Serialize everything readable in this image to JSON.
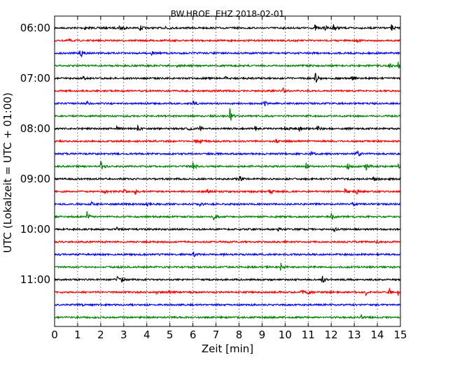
{
  "chart_data": {
    "type": "line",
    "title": "BW.HROE..EHZ 2018-02-01",
    "xlabel": "Zeit  [min]",
    "ylabel": "UTC (Lokalzeit = UTC + 01:00)",
    "xlim": [
      0,
      15
    ],
    "x_ticks": [
      "0",
      "1",
      "2",
      "3",
      "4",
      "5",
      "6",
      "7",
      "8",
      "9",
      "10",
      "11",
      "12",
      "13",
      "14",
      "15"
    ],
    "y_ticks": [
      "06:00",
      "07:00",
      "08:00",
      "09:00",
      "10:00",
      "11:00"
    ],
    "grid": "vertical dotted",
    "trace_colors": [
      "#000000",
      "#ff0000",
      "#0000ff",
      "#008000"
    ],
    "trace_start_times": [
      "06:00",
      "06:15",
      "06:30",
      "06:45",
      "07:00",
      "07:15",
      "07:30",
      "07:45",
      "08:00",
      "08:15",
      "08:30",
      "08:45",
      "09:00",
      "09:15",
      "09:30",
      "09:45",
      "10:00",
      "10:15",
      "10:30",
      "10:45",
      "11:00",
      "11:15",
      "11:30",
      "11:45"
    ],
    "events": [
      [
        [
          1.3,
          0.3
        ],
        [
          2.8,
          0.5
        ],
        [
          2.9,
          0.4
        ],
        [
          3.7,
          0.5
        ],
        [
          4.8,
          0.8
        ],
        [
          11.3,
          0.6
        ],
        [
          11.7,
          0.6
        ],
        [
          12.1,
          0.9
        ],
        [
          14.6,
          0.6
        ]
      ],
      [
        [
          0.6,
          0.3
        ],
        [
          13.1,
          0.3
        ]
      ],
      [
        [
          1.1,
          1.0
        ],
        [
          4.2,
          0.3
        ]
      ],
      [
        [
          5.3,
          0.3
        ],
        [
          14.5,
          0.4
        ],
        [
          14.9,
          0.6
        ]
      ],
      [
        [
          1.2,
          0.4
        ],
        [
          7.4,
          0.4
        ],
        [
          11.3,
          1.1
        ],
        [
          12.9,
          0.4
        ]
      ],
      [
        [
          9.9,
          0.5
        ]
      ],
      [
        [
          1.4,
          0.3
        ],
        [
          6.0,
          0.7
        ],
        [
          9.1,
          0.5
        ]
      ],
      [
        [
          7.6,
          1.3
        ]
      ],
      [
        [
          2.7,
          0.4
        ],
        [
          3.6,
          0.5
        ],
        [
          5.8,
          0.5
        ],
        [
          6.3,
          0.4
        ],
        [
          8.7,
          0.5
        ],
        [
          10.0,
          0.6
        ],
        [
          10.6,
          0.6
        ],
        [
          11.4,
          0.6
        ]
      ],
      [
        [
          6.1,
          0.4
        ],
        [
          6.3,
          0.4
        ],
        [
          9.6,
          0.3
        ]
      ],
      [
        [
          11.1,
          0.6
        ],
        [
          13.1,
          0.9
        ]
      ],
      [
        [
          2.0,
          1.3
        ],
        [
          6.0,
          0.7
        ],
        [
          10.9,
          0.8
        ],
        [
          12.7,
          0.7
        ],
        [
          13.5,
          0.8
        ],
        [
          14.9,
          0.4
        ]
      ],
      [
        [
          8.0,
          0.8
        ],
        [
          13.8,
          0.6
        ]
      ],
      [
        [
          2.1,
          0.5
        ],
        [
          3.0,
          0.4
        ],
        [
          3.5,
          0.7
        ],
        [
          6.6,
          0.4
        ],
        [
          9.3,
          0.8
        ],
        [
          12.6,
          0.5
        ],
        [
          13.1,
          0.4
        ]
      ],
      [
        [
          1.6,
          0.3
        ],
        [
          4.0,
          0.3
        ],
        [
          6.3,
          0.4
        ],
        [
          12.9,
          0.4
        ]
      ],
      [
        [
          1.4,
          1.0
        ],
        [
          6.9,
          0.6
        ],
        [
          12.0,
          0.6
        ]
      ],
      [
        [
          2.7,
          0.3
        ],
        [
          9.7,
          0.3
        ],
        [
          12.1,
          0.4
        ]
      ],
      [
        [
          5.8,
          0.3
        ],
        [
          13.9,
          0.7
        ]
      ],
      [
        [
          6.0,
          0.7
        ],
        [
          7.3,
          0.3
        ]
      ],
      [
        [
          9.8,
          0.8
        ]
      ],
      [
        [
          2.7,
          0.6
        ],
        [
          2.9,
          0.4
        ],
        [
          11.6,
          0.7
        ]
      ],
      [
        [
          4.4,
          0.5
        ],
        [
          4.9,
          0.3
        ],
        [
          10.7,
          0.5
        ],
        [
          11.0,
          0.4
        ],
        [
          13.5,
          0.5
        ],
        [
          14.5,
          0.7
        ],
        [
          14.9,
          0.5
        ]
      ],
      [
        [
          1.1,
          0.3
        ]
      ],
      [
        [
          13.3,
          0.5
        ]
      ]
    ]
  }
}
